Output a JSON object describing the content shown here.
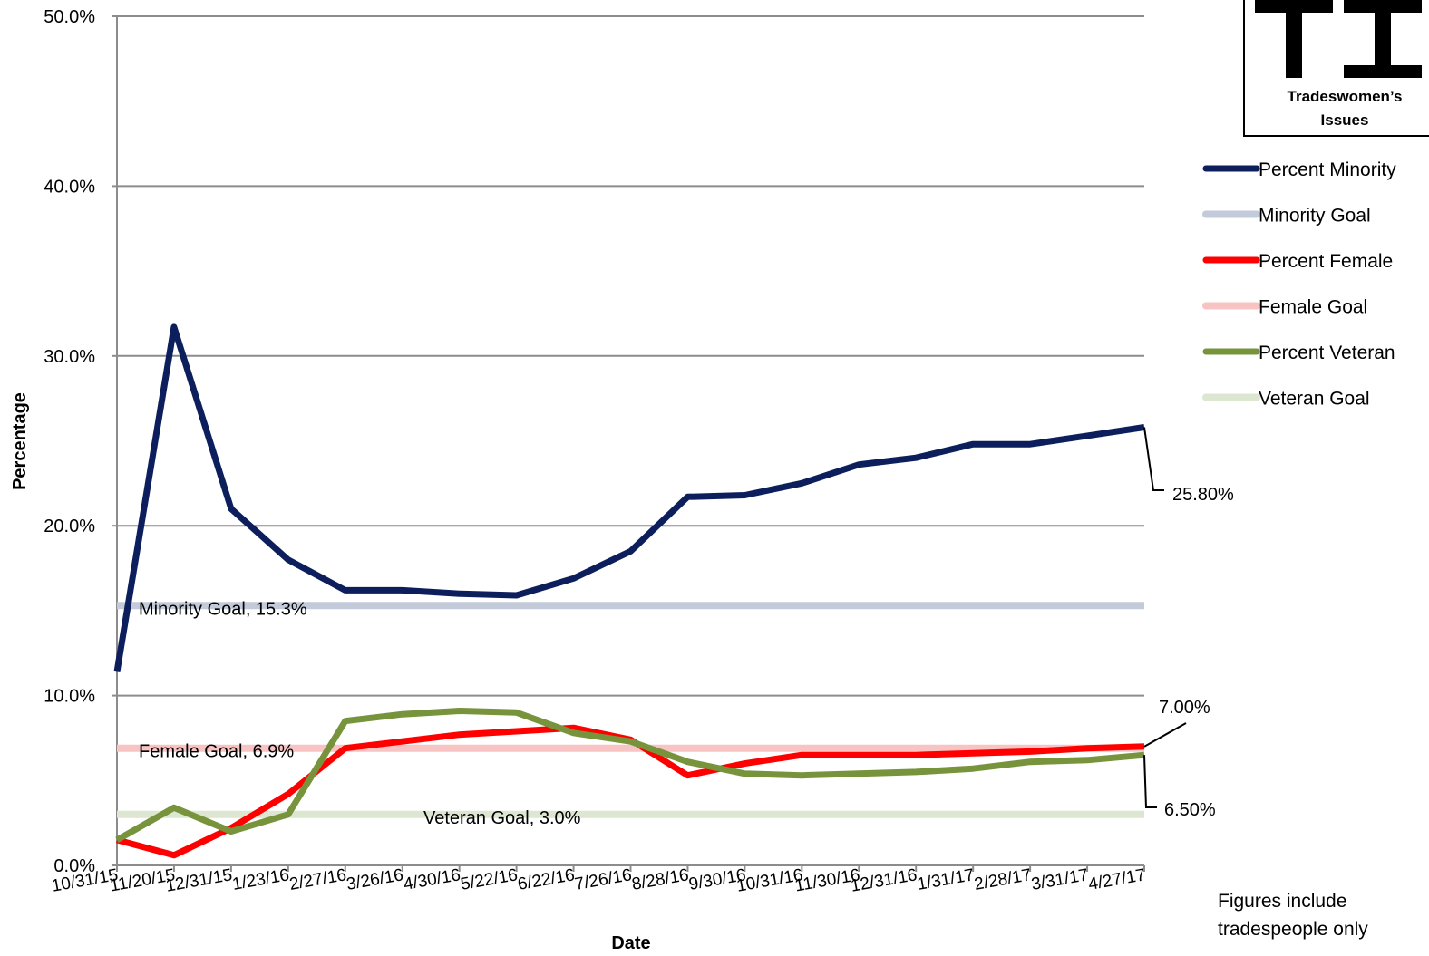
{
  "chart_data": {
    "type": "line",
    "xlabel": "Date",
    "ylabel": "Percentage",
    "ylim": [
      0,
      50
    ],
    "y_ticks": [
      "0.0%",
      "10.0%",
      "20.0%",
      "30.0%",
      "40.0%",
      "50.0%"
    ],
    "grid": true,
    "legend_position": "right",
    "categories": [
      "10/31/15",
      "11/20/15",
      "12/31/15",
      "1/23/16",
      "2/27/16",
      "3/26/16",
      "4/30/16",
      "5/22/16",
      "6/22/16",
      "7/26/16",
      "8/28/16",
      "9/30/16",
      "10/31/16",
      "11/30/16",
      "12/31/16",
      "1/31/17",
      "2/28/17",
      "3/31/17",
      "4/27/17"
    ],
    "series": [
      {
        "name": "Percent Minority",
        "color": "#0c1f5c",
        "width": 7,
        "values": [
          11.4,
          31.7,
          21.0,
          18.0,
          16.2,
          16.2,
          16.0,
          15.9,
          16.9,
          18.5,
          21.7,
          21.8,
          22.5,
          23.6,
          24.0,
          24.8,
          24.8,
          25.3,
          25.8
        ]
      },
      {
        "name": "Minority Goal",
        "color": "#c3cad9",
        "width": 8,
        "values": [
          15.3,
          15.3,
          15.3,
          15.3,
          15.3,
          15.3,
          15.3,
          15.3,
          15.3,
          15.3,
          15.3,
          15.3,
          15.3,
          15.3,
          15.3,
          15.3,
          15.3,
          15.3,
          15.3
        ]
      },
      {
        "name": "Percent Female",
        "color": "#ff0000",
        "width": 7,
        "values": [
          1.5,
          0.6,
          2.2,
          4.2,
          6.9,
          7.3,
          7.7,
          7.9,
          8.1,
          7.4,
          5.3,
          6.0,
          6.5,
          6.5,
          6.5,
          6.6,
          6.7,
          6.9,
          7.0
        ]
      },
      {
        "name": "Female Goal",
        "color": "#f8c3c3",
        "width": 8,
        "values": [
          6.9,
          6.9,
          6.9,
          6.9,
          6.9,
          6.9,
          6.9,
          6.9,
          6.9,
          6.9,
          6.9,
          6.9,
          6.9,
          6.9,
          6.9,
          6.9,
          6.9,
          6.9,
          6.9
        ]
      },
      {
        "name": "Percent Veteran",
        "color": "#77933c",
        "width": 7,
        "values": [
          1.5,
          3.4,
          2.0,
          3.0,
          8.5,
          8.9,
          9.1,
          9.0,
          7.8,
          7.3,
          6.1,
          5.4,
          5.3,
          5.4,
          5.5,
          5.7,
          6.1,
          6.2,
          6.5
        ]
      },
      {
        "name": "Veteran Goal",
        "color": "#dce6d0",
        "width": 8,
        "values": [
          3.0,
          3.0,
          3.0,
          3.0,
          3.0,
          3.0,
          3.0,
          3.0,
          3.0,
          3.0,
          3.0,
          3.0,
          3.0,
          3.0,
          3.0,
          3.0,
          3.0,
          3.0,
          3.0
        ]
      }
    ],
    "annotations": [
      {
        "text": "Minority Goal, 15.3%"
      },
      {
        "text": "Female Goal, 6.9%"
      },
      {
        "text": "Veteran Goal, 3.0%"
      },
      {
        "text": "25.80%",
        "series": "Percent Minority",
        "value": 25.8
      },
      {
        "text": "7.00%",
        "series": "Percent Female",
        "value": 7.0
      },
      {
        "text": "6.50%",
        "series": "Percent Veteran",
        "value": 6.5
      }
    ]
  },
  "logo": {
    "name": "Tradeswomen's Issues logo",
    "glyphs": "TI",
    "line1": "Tradeswomen’s",
    "line2": "Issues"
  },
  "note": {
    "line1": "Figures include",
    "line2": "tradespeople only"
  }
}
